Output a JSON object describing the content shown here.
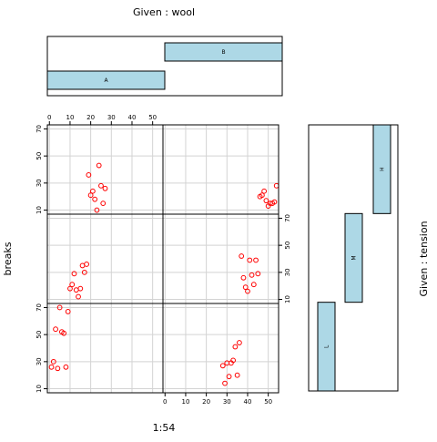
{
  "chart_data": {
    "type": "scatter",
    "title_top": "Given : wool",
    "title_right": "Given : tension",
    "xlabel": "1:54",
    "ylabel": "breaks",
    "x_ticks": [
      "0",
      "10",
      "20",
      "30",
      "40",
      "50"
    ],
    "y_ticks": [
      "10",
      "30",
      "50",
      "70"
    ],
    "x_range": [
      -1,
      55
    ],
    "y_range": [
      7,
      73
    ],
    "grid": true,
    "point_color": "#ff0000",
    "bar_fill": "#add8e6",
    "given_wool": [
      {
        "label": "A",
        "from": 0.5,
        "to": 27.5
      },
      {
        "label": "B",
        "from": 27.5,
        "to": 54.5
      }
    ],
    "given_tension": [
      {
        "label": "L",
        "from": 0.5,
        "to": 18.5
      },
      {
        "label": "M",
        "from": 18.5,
        "to": 36.5
      },
      {
        "label": "H",
        "from": 36.5,
        "to": 54.5
      }
    ],
    "panels": [
      {
        "wool": "A",
        "tension": "L",
        "points": [
          [
            1,
            26
          ],
          [
            2,
            30
          ],
          [
            3,
            54
          ],
          [
            4,
            25
          ],
          [
            5,
            70
          ],
          [
            6,
            52
          ],
          [
            7,
            51
          ],
          [
            8,
            26
          ],
          [
            9,
            67
          ]
        ]
      },
      {
        "wool": "A",
        "tension": "M",
        "points": [
          [
            10,
            18
          ],
          [
            11,
            21
          ],
          [
            12,
            29
          ],
          [
            13,
            17
          ],
          [
            14,
            12
          ],
          [
            15,
            18
          ],
          [
            16,
            35
          ],
          [
            17,
            30
          ],
          [
            18,
            36
          ]
        ]
      },
      {
        "wool": "A",
        "tension": "H",
        "points": [
          [
            19,
            36
          ],
          [
            20,
            21
          ],
          [
            21,
            24
          ],
          [
            22,
            18
          ],
          [
            23,
            10
          ],
          [
            24,
            43
          ],
          [
            25,
            28
          ],
          [
            26,
            15
          ],
          [
            27,
            26
          ]
        ]
      },
      {
        "wool": "B",
        "tension": "L",
        "points": [
          [
            28,
            27
          ],
          [
            29,
            14
          ],
          [
            30,
            29
          ],
          [
            31,
            19
          ],
          [
            32,
            29
          ],
          [
            33,
            31
          ],
          [
            34,
            41
          ],
          [
            35,
            20
          ],
          [
            36,
            44
          ]
        ]
      },
      {
        "wool": "B",
        "tension": "M",
        "points": [
          [
            37,
            42
          ],
          [
            38,
            26
          ],
          [
            39,
            19
          ],
          [
            40,
            16
          ],
          [
            41,
            39
          ],
          [
            42,
            28
          ],
          [
            43,
            21
          ],
          [
            44,
            39
          ],
          [
            45,
            29
          ]
        ]
      },
      {
        "wool": "B",
        "tension": "H",
        "points": [
          [
            46,
            20
          ],
          [
            47,
            21
          ],
          [
            48,
            24
          ],
          [
            49,
            17
          ],
          [
            50,
            13
          ],
          [
            51,
            15
          ],
          [
            52,
            15
          ],
          [
            53,
            16
          ],
          [
            54,
            28
          ]
        ]
      }
    ]
  }
}
